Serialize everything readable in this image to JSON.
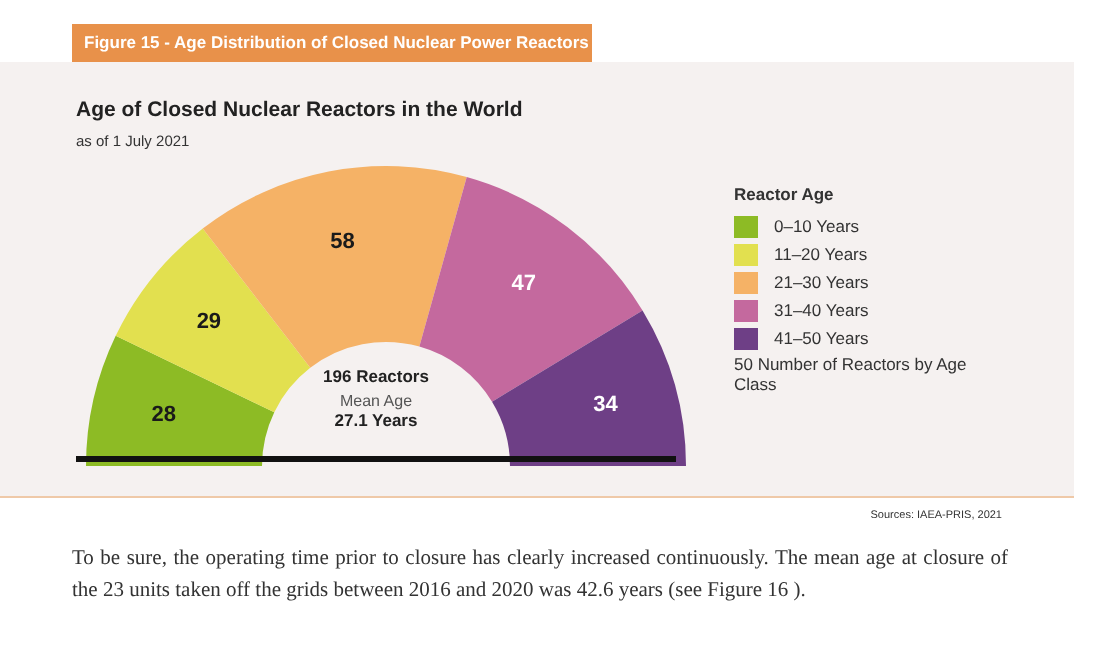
{
  "chart_data": {
    "type": "donut",
    "title": "Age of Closed Nuclear Reactors in the World",
    "subtitle": "as of 1 July 2021",
    "legend_title": "Reactor Age",
    "categories": [
      "0–10 Years",
      "11–20 Years",
      "21–30 Years",
      "31–40 Years",
      "41–50 Years"
    ],
    "values": [
      28,
      29,
      58,
      47,
      34
    ],
    "colors": [
      "#8dbb25",
      "#e2e04f",
      "#f5b266",
      "#c4699e",
      "#6e3f86"
    ],
    "data_labels": true,
    "legend": "right",
    "annotations": [
      "Figure 15 - Age Distribution of Closed Nuclear Power Reactors",
      "196 Reactors",
      "Mean Age",
      "27.1 Years",
      "50 Number of Reactors by Age Class",
      "Sources: IAEA-PRIS, 2021",
      "To be sure, the operating time prior to closure has clearly increased continuously. The mean age at closure of the 23 units taken off the grids between 2016 and 2020 was 42.6 years (see Figure 16 )."
    ]
  }
}
